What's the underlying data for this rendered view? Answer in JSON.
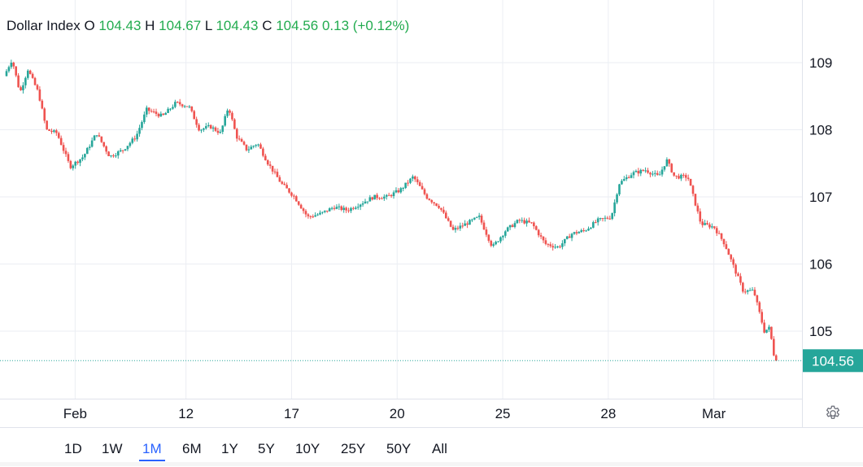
{
  "legend": {
    "symbol": "Dollar Index",
    "open_label": "O",
    "open": "104.43",
    "high_label": "H",
    "high": "104.67",
    "low_label": "L",
    "low": "104.43",
    "close_label": "C",
    "close": "104.56",
    "change": "0.13",
    "change_pct": "(+0.12%)"
  },
  "last_price_label": "104.56",
  "colors": {
    "up": "#26a69a",
    "down": "#ef5350",
    "grid": "#ebeef3",
    "last_price": "#26a69a",
    "accent": "#2962ff",
    "legend_value": "#22ab4f"
  },
  "settings_icon": "gear-icon",
  "range_buttons": [
    {
      "label": "1D"
    },
    {
      "label": "1W"
    },
    {
      "label": "1M"
    },
    {
      "label": "6M"
    },
    {
      "label": "1Y"
    },
    {
      "label": "5Y"
    },
    {
      "label": "10Y"
    },
    {
      "label": "25Y"
    },
    {
      "label": "50Y"
    },
    {
      "label": "All"
    }
  ],
  "active_range": "1M",
  "chart_data": {
    "type": "candlestick",
    "title": "Dollar Index",
    "xlabel": "",
    "ylabel": "",
    "ylim": [
      104.0,
      109.9
    ],
    "y_ticks": [
      105,
      106,
      107,
      108,
      109
    ],
    "x_tick_labels": [
      "Feb",
      "12",
      "17",
      "20",
      "25",
      "28",
      "Mar"
    ],
    "x_tick_days": [
      2.6,
      6.8,
      10.8,
      14.8,
      18.8,
      22.8,
      26.8
    ],
    "x_range_days": [
      0,
      29.8
    ],
    "grid": true,
    "last_price": 104.56,
    "path_anchors": [
      {
        "t": 0.0,
        "v": 108.8
      },
      {
        "t": 0.3,
        "v": 109.05
      },
      {
        "t": 0.6,
        "v": 108.55
      },
      {
        "t": 0.9,
        "v": 108.9
      },
      {
        "t": 1.3,
        "v": 108.55
      },
      {
        "t": 1.6,
        "v": 108.0
      },
      {
        "t": 2.0,
        "v": 107.95
      },
      {
        "t": 2.5,
        "v": 107.45
      },
      {
        "t": 3.0,
        "v": 107.6
      },
      {
        "t": 3.5,
        "v": 107.95
      },
      {
        "t": 4.0,
        "v": 107.6
      },
      {
        "t": 4.5,
        "v": 107.7
      },
      {
        "t": 5.0,
        "v": 107.9
      },
      {
        "t": 5.4,
        "v": 108.3
      },
      {
        "t": 6.0,
        "v": 108.2
      },
      {
        "t": 6.5,
        "v": 108.4
      },
      {
        "t": 7.0,
        "v": 108.35
      },
      {
        "t": 7.4,
        "v": 108.0
      },
      {
        "t": 7.8,
        "v": 108.05
      },
      {
        "t": 8.2,
        "v": 107.95
      },
      {
        "t": 8.5,
        "v": 108.35
      },
      {
        "t": 8.8,
        "v": 107.9
      },
      {
        "t": 9.2,
        "v": 107.7
      },
      {
        "t": 9.6,
        "v": 107.8
      },
      {
        "t": 10.0,
        "v": 107.5
      },
      {
        "t": 10.5,
        "v": 107.2
      },
      {
        "t": 11.0,
        "v": 107.0
      },
      {
        "t": 11.5,
        "v": 106.7
      },
      {
        "t": 12.0,
        "v": 106.75
      },
      {
        "t": 12.5,
        "v": 106.85
      },
      {
        "t": 13.0,
        "v": 106.8
      },
      {
        "t": 13.5,
        "v": 106.9
      },
      {
        "t": 14.0,
        "v": 107.0
      },
      {
        "t": 14.5,
        "v": 107.0
      },
      {
        "t": 15.0,
        "v": 107.1
      },
      {
        "t": 15.5,
        "v": 107.3
      },
      {
        "t": 16.0,
        "v": 107.0
      },
      {
        "t": 16.5,
        "v": 106.85
      },
      {
        "t": 17.0,
        "v": 106.5
      },
      {
        "t": 17.5,
        "v": 106.6
      },
      {
        "t": 18.0,
        "v": 106.7
      },
      {
        "t": 18.5,
        "v": 106.25
      },
      {
        "t": 19.0,
        "v": 106.5
      },
      {
        "t": 19.5,
        "v": 106.65
      },
      {
        "t": 20.0,
        "v": 106.6
      },
      {
        "t": 20.5,
        "v": 106.3
      },
      {
        "t": 21.0,
        "v": 106.25
      },
      {
        "t": 21.5,
        "v": 106.45
      },
      {
        "t": 22.0,
        "v": 106.5
      },
      {
        "t": 22.5,
        "v": 106.65
      },
      {
        "t": 23.0,
        "v": 106.7
      },
      {
        "t": 23.3,
        "v": 107.2
      },
      {
        "t": 23.8,
        "v": 107.35
      },
      {
        "t": 24.3,
        "v": 107.4
      },
      {
        "t": 24.8,
        "v": 107.3
      },
      {
        "t": 25.1,
        "v": 107.55
      },
      {
        "t": 25.4,
        "v": 107.3
      },
      {
        "t": 25.9,
        "v": 107.3
      },
      {
        "t": 26.4,
        "v": 106.6
      },
      {
        "t": 26.9,
        "v": 106.55
      },
      {
        "t": 27.3,
        "v": 106.3
      },
      {
        "t": 27.7,
        "v": 105.9
      },
      {
        "t": 28.0,
        "v": 105.6
      },
      {
        "t": 28.4,
        "v": 105.6
      },
      {
        "t": 28.8,
        "v": 105.0
      },
      {
        "t": 29.0,
        "v": 105.05
      },
      {
        "t": 29.2,
        "v": 104.56
      }
    ]
  }
}
